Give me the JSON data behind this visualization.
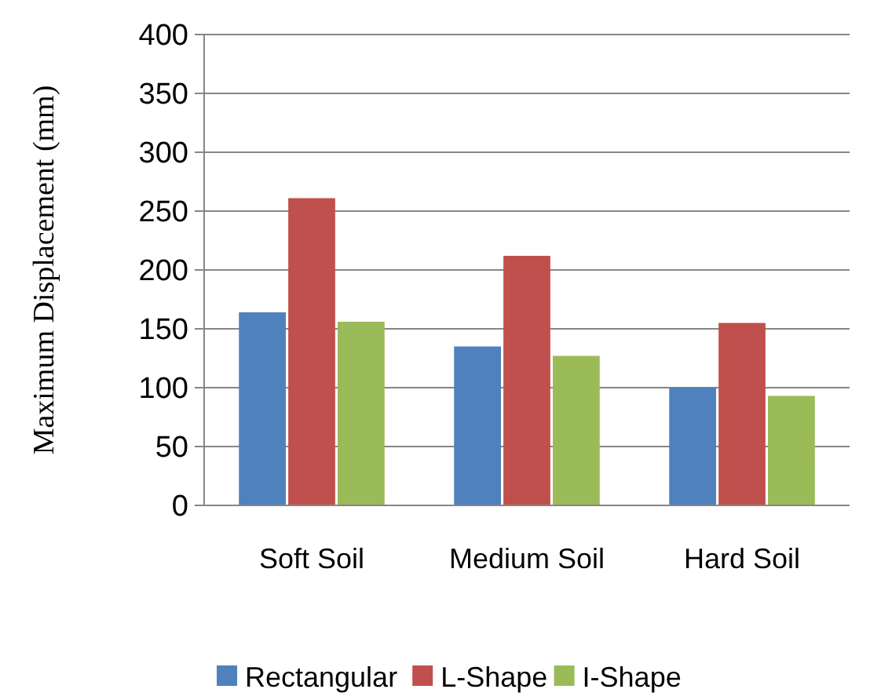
{
  "chart_data": {
    "type": "bar",
    "ylabel": "Maximum Displacement (mm)",
    "categories": [
      "Soft Soil",
      "Medium Soil",
      "Hard Soil"
    ],
    "series": [
      {
        "name": "Rectangular",
        "color": "#4f81bd",
        "values": [
          164,
          135,
          100
        ]
      },
      {
        "name": "L-Shape",
        "color": "#c0504d",
        "values": [
          261,
          212,
          155
        ]
      },
      {
        "name": "I-Shape",
        "color": "#9bbb59",
        "values": [
          156,
          127,
          93
        ]
      }
    ],
    "ylim": [
      0,
      400
    ],
    "yticks": [
      0,
      50,
      100,
      150,
      200,
      250,
      300,
      350,
      400
    ],
    "grid": "y",
    "legend": "bottom"
  }
}
